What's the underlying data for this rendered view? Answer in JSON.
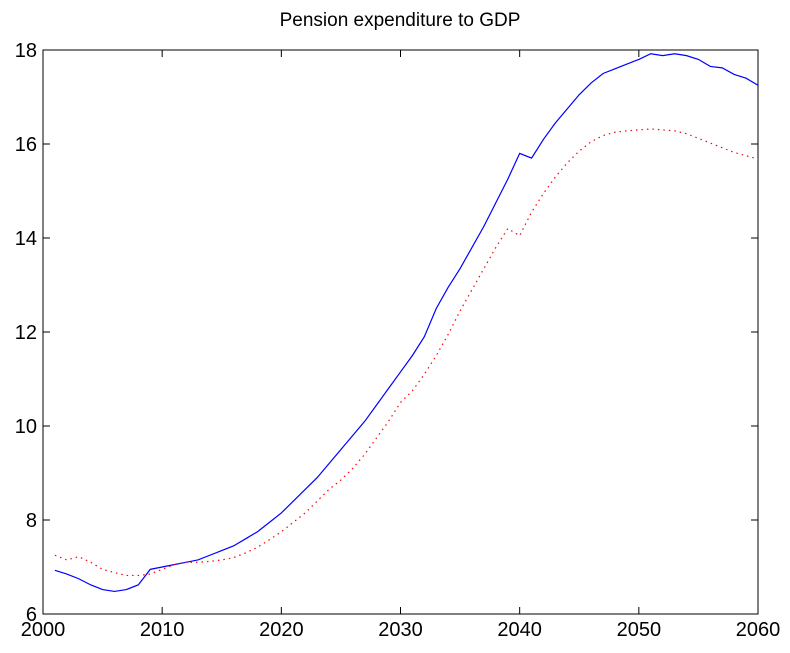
{
  "chart_data": {
    "type": "line",
    "title": "Pension expenditure to GDP",
    "x": [
      2001,
      2002,
      2003,
      2004,
      2005,
      2006,
      2007,
      2008,
      2009,
      2010,
      2011,
      2012,
      2013,
      2014,
      2015,
      2016,
      2017,
      2018,
      2019,
      2020,
      2021,
      2022,
      2023,
      2024,
      2025,
      2026,
      2027,
      2028,
      2029,
      2030,
      2031,
      2032,
      2033,
      2034,
      2035,
      2036,
      2037,
      2038,
      2039,
      2040,
      2041,
      2042,
      2043,
      2044,
      2045,
      2046,
      2047,
      2048,
      2049,
      2050,
      2051,
      2052,
      2053,
      2054,
      2055,
      2056,
      2057,
      2058,
      2059,
      2060
    ],
    "series": [
      {
        "color": "#0000ff",
        "linestyle": "solid",
        "values": [
          6.93,
          6.85,
          6.75,
          6.62,
          6.52,
          6.48,
          6.52,
          6.62,
          6.95,
          7.0,
          7.05,
          7.1,
          7.15,
          7.25,
          7.35,
          7.45,
          7.6,
          7.75,
          7.95,
          8.15,
          8.4,
          8.65,
          8.9,
          9.2,
          9.5,
          9.8,
          10.1,
          10.45,
          10.8,
          11.15,
          11.5,
          11.9,
          12.5,
          12.95,
          13.35,
          13.8,
          14.25,
          14.75,
          15.25,
          15.8,
          15.7,
          16.1,
          16.45,
          16.75,
          17.05,
          17.3,
          17.5,
          17.6,
          17.7,
          17.8,
          17.92,
          17.88,
          17.92,
          17.88,
          17.8,
          17.65,
          17.62,
          17.48,
          17.4,
          17.25
        ]
      },
      {
        "color": "#ff0000",
        "linestyle": "dotted",
        "values": [
          7.25,
          7.15,
          7.22,
          7.1,
          6.95,
          6.88,
          6.82,
          6.82,
          6.85,
          6.95,
          7.05,
          7.1,
          7.1,
          7.12,
          7.15,
          7.2,
          7.3,
          7.42,
          7.58,
          7.75,
          7.95,
          8.15,
          8.4,
          8.65,
          8.85,
          9.1,
          9.4,
          9.75,
          10.1,
          10.5,
          10.75,
          11.1,
          11.5,
          11.95,
          12.45,
          12.9,
          13.35,
          13.8,
          14.2,
          14.05,
          14.55,
          14.95,
          15.3,
          15.6,
          15.85,
          16.05,
          16.18,
          16.25,
          16.28,
          16.3,
          16.32,
          16.3,
          16.28,
          16.22,
          16.12,
          16.02,
          15.92,
          15.82,
          15.75,
          15.68
        ]
      }
    ],
    "xlim": [
      2000,
      2060
    ],
    "xticks": [
      2000,
      2010,
      2020,
      2030,
      2040,
      2050,
      2060
    ],
    "ylim": [
      6,
      18
    ],
    "yticks": [
      6,
      8,
      10,
      12,
      14,
      16,
      18
    ]
  }
}
